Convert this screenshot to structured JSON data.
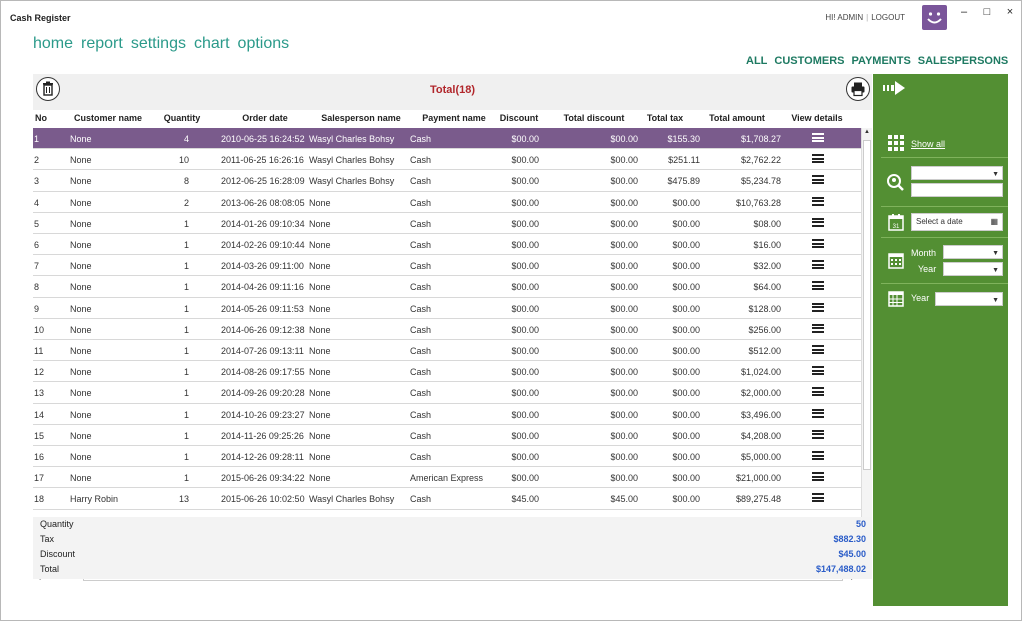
{
  "window": {
    "title": "Cash Register",
    "greeting": "HI! ADMIN",
    "logout": "LOGOUT",
    "minimize": "–",
    "maximize": "□",
    "close": "×"
  },
  "topnav": [
    "home",
    "report",
    "settings",
    "chart",
    "options"
  ],
  "filter_tabs": [
    "ALL",
    "CUSTOMERS",
    "PAYMENTS",
    "SALESPERSONS"
  ],
  "grid": {
    "total_label": "Total(18)",
    "columns": [
      "No",
      "Customer name",
      "Quantity",
      "Order date",
      "Salesperson name",
      "Payment name",
      "Discount",
      "Total discount",
      "Total tax",
      "Total amount",
      "View details"
    ],
    "rows": [
      [
        "1",
        "None",
        "4",
        "2010-06-25 16:24:52",
        "Wasyl Charles Bohsy",
        "Cash",
        "$00.00",
        "$00.00",
        "$155.30",
        "$1,708.27"
      ],
      [
        "2",
        "None",
        "10",
        "2011-06-25 16:26:16",
        "Wasyl Charles Bohsy",
        "Cash",
        "$00.00",
        "$00.00",
        "$251.11",
        "$2,762.22"
      ],
      [
        "3",
        "None",
        "8",
        "2012-06-25 16:28:09",
        "Wasyl Charles Bohsy",
        "Cash",
        "$00.00",
        "$00.00",
        "$475.89",
        "$5,234.78"
      ],
      [
        "4",
        "None",
        "2",
        "2013-06-26 08:08:05",
        "None",
        "Cash",
        "$00.00",
        "$00.00",
        "$00.00",
        "$10,763.28"
      ],
      [
        "5",
        "None",
        "1",
        "2014-01-26 09:10:34",
        "None",
        "Cash",
        "$00.00",
        "$00.00",
        "$00.00",
        "$08.00"
      ],
      [
        "6",
        "None",
        "1",
        "2014-02-26 09:10:44",
        "None",
        "Cash",
        "$00.00",
        "$00.00",
        "$00.00",
        "$16.00"
      ],
      [
        "7",
        "None",
        "1",
        "2014-03-26 09:11:00",
        "None",
        "Cash",
        "$00.00",
        "$00.00",
        "$00.00",
        "$32.00"
      ],
      [
        "8",
        "None",
        "1",
        "2014-04-26 09:11:16",
        "None",
        "Cash",
        "$00.00",
        "$00.00",
        "$00.00",
        "$64.00"
      ],
      [
        "9",
        "None",
        "1",
        "2014-05-26 09:11:53",
        "None",
        "Cash",
        "$00.00",
        "$00.00",
        "$00.00",
        "$128.00"
      ],
      [
        "10",
        "None",
        "1",
        "2014-06-26 09:12:38",
        "None",
        "Cash",
        "$00.00",
        "$00.00",
        "$00.00",
        "$256.00"
      ],
      [
        "11",
        "None",
        "1",
        "2014-07-26 09:13:11",
        "None",
        "Cash",
        "$00.00",
        "$00.00",
        "$00.00",
        "$512.00"
      ],
      [
        "12",
        "None",
        "1",
        "2014-08-26 09:17:55",
        "None",
        "Cash",
        "$00.00",
        "$00.00",
        "$00.00",
        "$1,024.00"
      ],
      [
        "13",
        "None",
        "1",
        "2014-09-26 09:20:28",
        "None",
        "Cash",
        "$00.00",
        "$00.00",
        "$00.00",
        "$2,000.00"
      ],
      [
        "14",
        "None",
        "1",
        "2014-10-26 09:23:27",
        "None",
        "Cash",
        "$00.00",
        "$00.00",
        "$00.00",
        "$3,496.00"
      ],
      [
        "15",
        "None",
        "1",
        "2014-11-26 09:25:26",
        "None",
        "Cash",
        "$00.00",
        "$00.00",
        "$00.00",
        "$4,208.00"
      ],
      [
        "16",
        "None",
        "1",
        "2014-12-26 09:28:11",
        "None",
        "Cash",
        "$00.00",
        "$00.00",
        "$00.00",
        "$5,000.00"
      ],
      [
        "17",
        "None",
        "1",
        "2015-06-26 09:34:22",
        "None",
        "American Express",
        "$00.00",
        "$00.00",
        "$00.00",
        "$21,000.00"
      ],
      [
        "18",
        "Harry Robin",
        "13",
        "2015-06-26 10:02:50",
        "Wasyl Charles Bohsy",
        "Cash",
        "$45.00",
        "$45.00",
        "$00.00",
        "$89,275.48"
      ]
    ],
    "selected_row": 0
  },
  "summary": [
    {
      "label": "Quantity",
      "value": "50"
    },
    {
      "label": "Tax",
      "value": "$882.30"
    },
    {
      "label": "Discount",
      "value": "$45.00"
    },
    {
      "label": "Total",
      "value": "$147,488.02"
    }
  ],
  "sidebar": {
    "show_all": "Show all",
    "date_placeholder": "Select a date",
    "month_label": "Month",
    "year_label": "Year",
    "year_label_2": "Year"
  },
  "colors": {
    "selected_row": "#7a5b8c",
    "sidebar_green": "#538f33",
    "nav_teal": "#2b9a8a",
    "total_red": "#b1262b",
    "summary_blue": "#2a5cc8"
  }
}
